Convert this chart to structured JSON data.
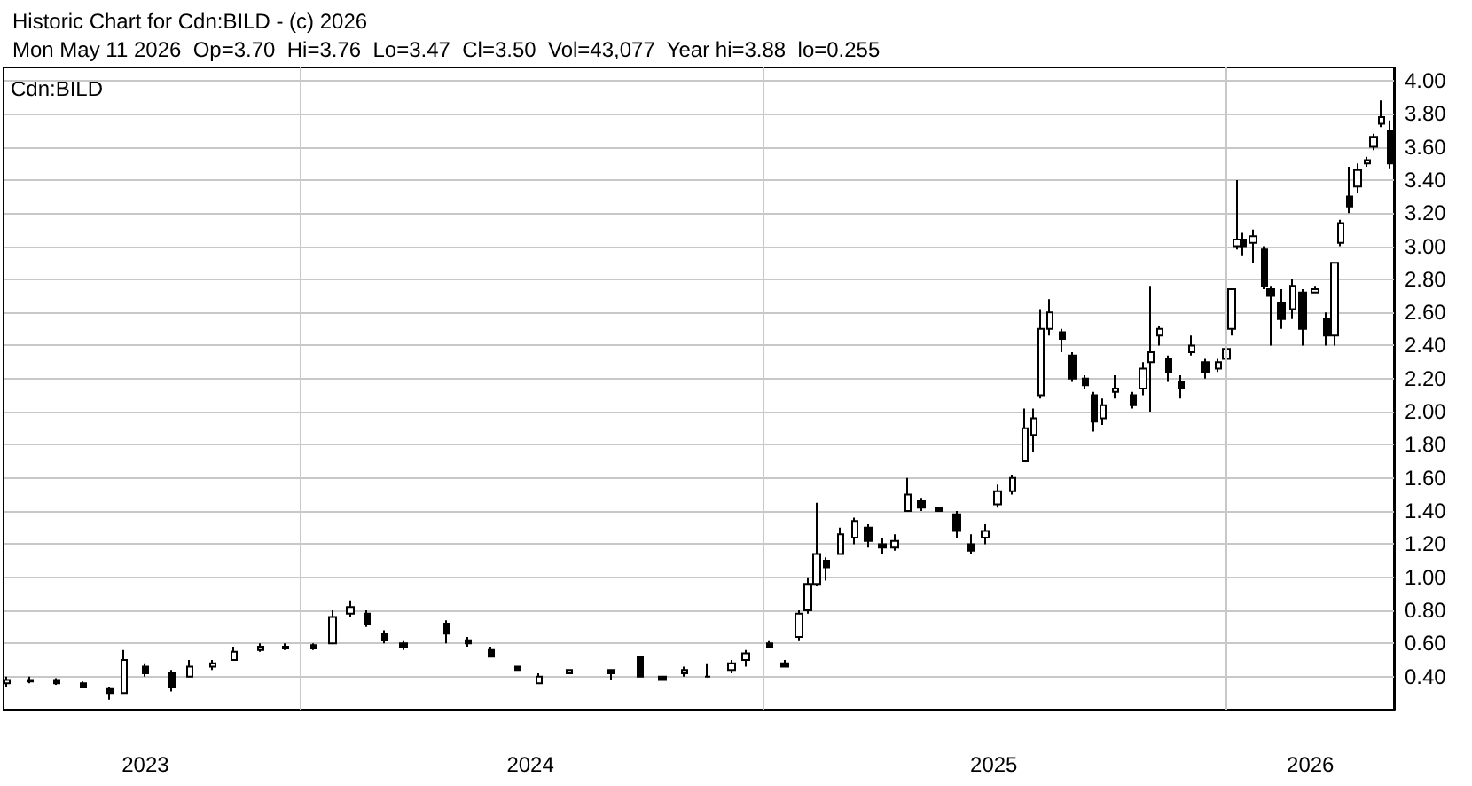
{
  "chart_data": {
    "type": "candlestick",
    "title": "Historic Chart for Cdn:BILD - (c) 2026",
    "subtitle": "Mon May 11 2026  Op=3.70  Hi=3.76  Lo=3.47  Cl=3.50  Vol=43,077  Year hi=3.88  lo=0.255",
    "annotations": [
      "Cdn:BILD"
    ],
    "x": [
      "2023-05-15",
      "2023-06-02",
      "2023-06-23",
      "2023-07-14",
      "2023-08-04",
      "2023-08-15",
      "2023-09-01",
      "2023-09-22",
      "2023-10-06",
      "2023-10-24",
      "2023-11-10",
      "2023-12-01",
      "2023-12-21",
      "2024-01-12",
      "2024-01-27",
      "2024-02-10",
      "2024-02-23",
      "2024-03-08",
      "2024-03-23",
      "2024-04-26",
      "2024-05-13",
      "2024-05-31",
      "2024-06-21",
      "2024-07-08",
      "2024-08-01",
      "2024-09-03",
      "2024-09-26",
      "2024-10-13",
      "2024-10-31",
      "2024-11-18",
      "2024-12-07",
      "2024-12-18",
      "2025-01-06",
      "2025-01-18",
      "2025-01-29",
      "2025-02-05",
      "2025-02-12",
      "2025-02-20",
      "2025-03-03",
      "2025-03-14",
      "2025-03-25",
      "2025-04-05",
      "2025-04-15",
      "2025-04-25",
      "2025-05-06",
      "2025-05-20",
      "2025-06-03",
      "2025-06-14",
      "2025-06-25",
      "2025-07-05",
      "2025-07-17",
      "2025-07-27",
      "2025-08-03",
      "2025-08-08",
      "2025-08-15",
      "2025-08-25",
      "2025-09-02",
      "2025-09-12",
      "2025-09-19",
      "2025-09-26",
      "2025-10-06",
      "2025-10-20",
      "2025-10-28",
      "2025-11-03",
      "2025-11-10",
      "2025-11-17",
      "2025-11-27",
      "2025-12-05",
      "2025-12-16",
      "2025-12-26",
      "2026-01-02",
      "2026-01-06",
      "2026-01-10",
      "2026-01-15",
      "2026-01-23",
      "2026-02-01",
      "2026-02-06",
      "2026-02-14",
      "2026-02-23",
      "2026-03-03",
      "2026-03-13",
      "2026-03-22",
      "2026-03-28",
      "2026-04-02",
      "2026-04-09",
      "2026-04-15",
      "2026-04-23",
      "2026-04-28",
      "2026-05-04",
      "2026-05-11"
    ],
    "series": [
      {
        "color": "#000000",
        "ohlc": [
          [
            0.36,
            0.4,
            0.34,
            0.38
          ],
          [
            0.37,
            0.4,
            0.36,
            0.38
          ],
          [
            0.38,
            0.39,
            0.35,
            0.36
          ],
          [
            0.36,
            0.37,
            0.33,
            0.34
          ],
          [
            0.33,
            0.34,
            0.26,
            0.3
          ],
          [
            0.3,
            0.56,
            0.3,
            0.5
          ],
          [
            0.46,
            0.48,
            0.4,
            0.42
          ],
          [
            0.42,
            0.44,
            0.31,
            0.34
          ],
          [
            0.4,
            0.5,
            0.4,
            0.46
          ],
          [
            0.46,
            0.5,
            0.44,
            0.48
          ],
          [
            0.5,
            0.58,
            0.5,
            0.55
          ],
          [
            0.56,
            0.6,
            0.55,
            0.58
          ],
          [
            0.57,
            0.6,
            0.56,
            0.58
          ],
          [
            0.59,
            0.6,
            0.56,
            0.57
          ],
          [
            0.6,
            0.8,
            0.6,
            0.76
          ],
          [
            0.78,
            0.86,
            0.76,
            0.82
          ],
          [
            0.78,
            0.8,
            0.7,
            0.72
          ],
          [
            0.66,
            0.68,
            0.6,
            0.62
          ],
          [
            0.6,
            0.62,
            0.56,
            0.58
          ],
          [
            0.72,
            0.74,
            0.6,
            0.66
          ],
          [
            0.62,
            0.64,
            0.58,
            0.6
          ],
          [
            0.56,
            0.58,
            0.52,
            0.52
          ],
          [
            0.46,
            0.46,
            0.44,
            0.44
          ],
          [
            0.36,
            0.42,
            0.36,
            0.4
          ],
          [
            0.42,
            0.44,
            0.42,
            0.44
          ],
          [
            0.44,
            0.44,
            0.38,
            0.42
          ],
          [
            0.52,
            0.52,
            0.4,
            0.4
          ],
          [
            0.4,
            0.4,
            0.38,
            0.38
          ],
          [
            0.42,
            0.46,
            0.4,
            0.44
          ],
          [
            0.4,
            0.48,
            0.4,
            0.4
          ],
          [
            0.44,
            0.5,
            0.42,
            0.48
          ],
          [
            0.5,
            0.56,
            0.46,
            0.54
          ],
          [
            0.6,
            0.62,
            0.58,
            0.58
          ],
          [
            0.48,
            0.5,
            0.46,
            0.46
          ],
          [
            0.64,
            0.8,
            0.62,
            0.78
          ],
          [
            0.8,
            1.0,
            0.78,
            0.96
          ],
          [
            0.96,
            1.45,
            0.95,
            1.14
          ],
          [
            1.1,
            1.12,
            0.98,
            1.06
          ],
          [
            1.14,
            1.3,
            1.14,
            1.26
          ],
          [
            1.24,
            1.36,
            1.2,
            1.34
          ],
          [
            1.3,
            1.32,
            1.18,
            1.22
          ],
          [
            1.2,
            1.24,
            1.14,
            1.18
          ],
          [
            1.18,
            1.26,
            1.16,
            1.22
          ],
          [
            1.4,
            1.6,
            1.4,
            1.5
          ],
          [
            1.46,
            1.48,
            1.4,
            1.42
          ],
          [
            1.42,
            1.42,
            1.4,
            1.4
          ],
          [
            1.38,
            1.4,
            1.24,
            1.28
          ],
          [
            1.2,
            1.26,
            1.14,
            1.16
          ],
          [
            1.24,
            1.32,
            1.2,
            1.28
          ],
          [
            1.44,
            1.56,
            1.42,
            1.52
          ],
          [
            1.52,
            1.62,
            1.5,
            1.6
          ],
          [
            1.7,
            2.02,
            1.7,
            1.9
          ],
          [
            1.86,
            2.02,
            1.76,
            1.96
          ],
          [
            2.1,
            2.62,
            2.08,
            2.5
          ],
          [
            2.5,
            2.68,
            2.46,
            2.6
          ],
          [
            2.48,
            2.5,
            2.36,
            2.44
          ],
          [
            2.34,
            2.36,
            2.18,
            2.2
          ],
          [
            2.2,
            2.22,
            2.14,
            2.16
          ],
          [
            2.1,
            2.12,
            1.88,
            1.94
          ],
          [
            1.96,
            2.08,
            1.92,
            2.04
          ],
          [
            2.12,
            2.22,
            2.08,
            2.14
          ],
          [
            2.1,
            2.12,
            2.02,
            2.04
          ],
          [
            2.14,
            2.3,
            2.1,
            2.26
          ],
          [
            2.3,
            2.76,
            2.0,
            2.36
          ],
          [
            2.46,
            2.52,
            2.4,
            2.5
          ],
          [
            2.32,
            2.34,
            2.18,
            2.24
          ],
          [
            2.18,
            2.22,
            2.08,
            2.14
          ],
          [
            2.36,
            2.46,
            2.34,
            2.4
          ],
          [
            2.3,
            2.32,
            2.2,
            2.24
          ],
          [
            2.26,
            2.32,
            2.24,
            2.3
          ],
          [
            2.32,
            2.4,
            2.3,
            2.38
          ],
          [
            2.5,
            2.74,
            2.46,
            2.74
          ],
          [
            3.0,
            3.4,
            2.98,
            3.04
          ],
          [
            3.04,
            3.08,
            2.94,
            3.0
          ],
          [
            3.02,
            3.1,
            2.9,
            3.06
          ],
          [
            2.98,
            3.0,
            2.74,
            2.76
          ],
          [
            2.74,
            2.76,
            2.4,
            2.7
          ],
          [
            2.66,
            2.74,
            2.5,
            2.56
          ],
          [
            2.62,
            2.8,
            2.56,
            2.76
          ],
          [
            2.72,
            2.74,
            2.4,
            2.5
          ],
          [
            2.72,
            2.76,
            2.72,
            2.74
          ],
          [
            2.56,
            2.6,
            2.4,
            2.46
          ],
          [
            2.46,
            2.9,
            2.4,
            2.9
          ],
          [
            3.02,
            3.16,
            3.0,
            3.14
          ],
          [
            3.3,
            3.48,
            3.2,
            3.24
          ],
          [
            3.36,
            3.5,
            3.32,
            3.46
          ],
          [
            3.5,
            3.54,
            3.48,
            3.52
          ],
          [
            3.6,
            3.68,
            3.58,
            3.66
          ],
          [
            3.74,
            3.88,
            3.72,
            3.78
          ],
          [
            3.7,
            3.76,
            3.47,
            3.5
          ]
        ]
      }
    ],
    "xlim": [
      "2023-05-12",
      "2026-05-14"
    ],
    "xticks": [
      {
        "value": "2023-09-01",
        "label": "2023"
      },
      {
        "value": "2024-07-01",
        "label": "2024"
      },
      {
        "value": "2025-07-02",
        "label": "2025"
      },
      {
        "value": "2026-03-09",
        "label": "2026"
      }
    ],
    "ylim": [
      0.2,
      4.08
    ],
    "yticks": [
      {
        "value": 0.4,
        "label": "0.40"
      },
      {
        "value": 0.6,
        "label": "0.60"
      },
      {
        "value": 0.8,
        "label": "0.80"
      },
      {
        "value": 1.0,
        "label": "1.00"
      },
      {
        "value": 1.2,
        "label": "1.20"
      },
      {
        "value": 1.4,
        "label": "1.40"
      },
      {
        "value": 1.6,
        "label": "1.60"
      },
      {
        "value": 1.8,
        "label": "1.80"
      },
      {
        "value": 2.0,
        "label": "2.00"
      },
      {
        "value": 2.2,
        "label": "2.20"
      },
      {
        "value": 2.4,
        "label": "2.40"
      },
      {
        "value": 2.6,
        "label": "2.60"
      },
      {
        "value": 2.8,
        "label": "2.80"
      },
      {
        "value": 3.0,
        "label": "3.00"
      },
      {
        "value": 3.2,
        "label": "3.20"
      },
      {
        "value": 3.4,
        "label": "3.40"
      },
      {
        "value": 3.6,
        "label": "3.60"
      },
      {
        "value": 3.8,
        "label": "3.80"
      },
      {
        "value": 4.0,
        "label": "4.00"
      }
    ],
    "ref_lines": [
      {
        "axis": "x",
        "value": "2024-01-01",
        "color": "#c8c8c8"
      },
      {
        "axis": "x",
        "value": "2025-01-01",
        "color": "#c8c8c8"
      },
      {
        "axis": "x",
        "value": "2026-01-01",
        "color": "#c8c8c8"
      }
    ],
    "grid": "y"
  }
}
